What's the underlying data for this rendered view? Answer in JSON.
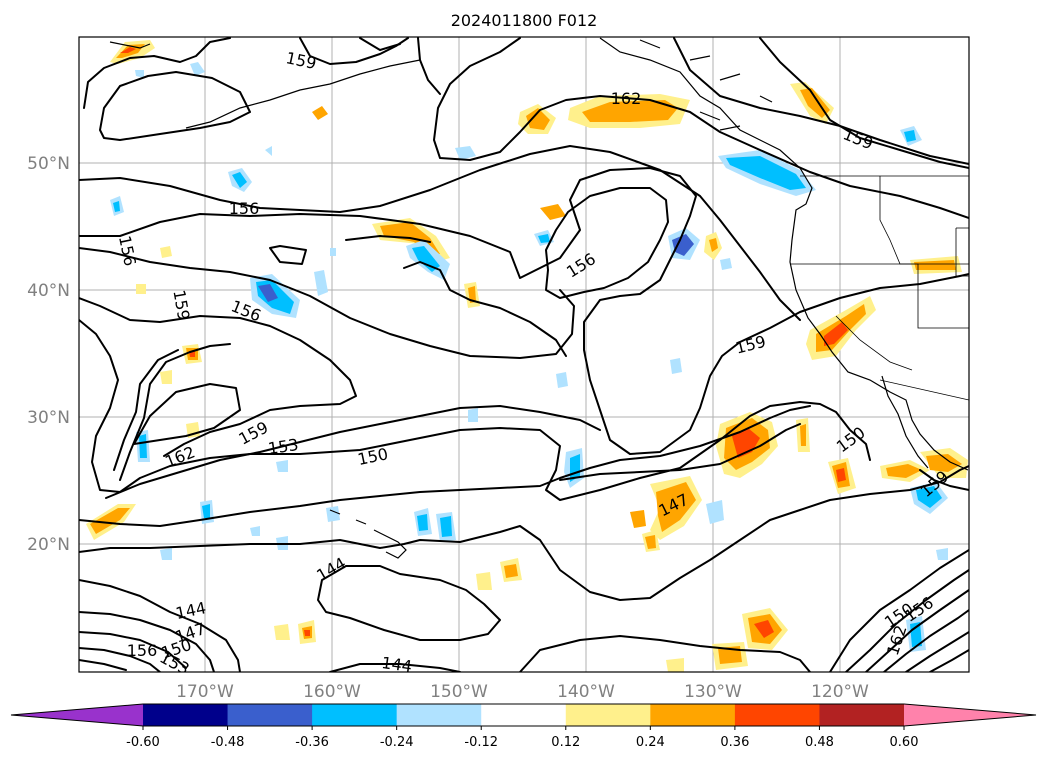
{
  "title": "2024011800 F012",
  "lat_labels": [
    "50°N",
    "40°N",
    "30°N",
    "20°N"
  ],
  "lon_labels": [
    "170°W",
    "160°W",
    "150°W",
    "140°W",
    "130°W",
    "120°W"
  ],
  "contour_labels": [
    "159",
    "162",
    "159",
    "156",
    "156",
    "159",
    "156",
    "156",
    "159",
    "159",
    "153",
    "162",
    "150",
    "150",
    "147",
    "144",
    "144",
    "147",
    "150",
    "153",
    "156",
    "144",
    "150",
    "156",
    "162",
    "159",
    "147",
    "156"
  ],
  "colorbar": {
    "ticks": [
      "-0.60",
      "-0.48",
      "-0.36",
      "-0.24",
      "-0.12",
      "0.12",
      "0.24",
      "0.36",
      "0.48",
      "0.60"
    ],
    "colors": {
      "under": "#9932cc",
      "bins": [
        "#00008b",
        "#3a5fcd",
        "#00bfff",
        "#b0e2ff",
        "#ffffff",
        "#fff08c",
        "#ffa500",
        "#ff4500",
        "#b22222"
      ],
      "over": "#ff82ab"
    }
  },
  "shading_colors": {
    "light_blue": "#b0e2ff",
    "blue": "#00bfff",
    "dark_blue": "#3a5fcd",
    "light_yellow": "#fff08c",
    "orange": "#ffa500",
    "red": "#ff4500"
  }
}
